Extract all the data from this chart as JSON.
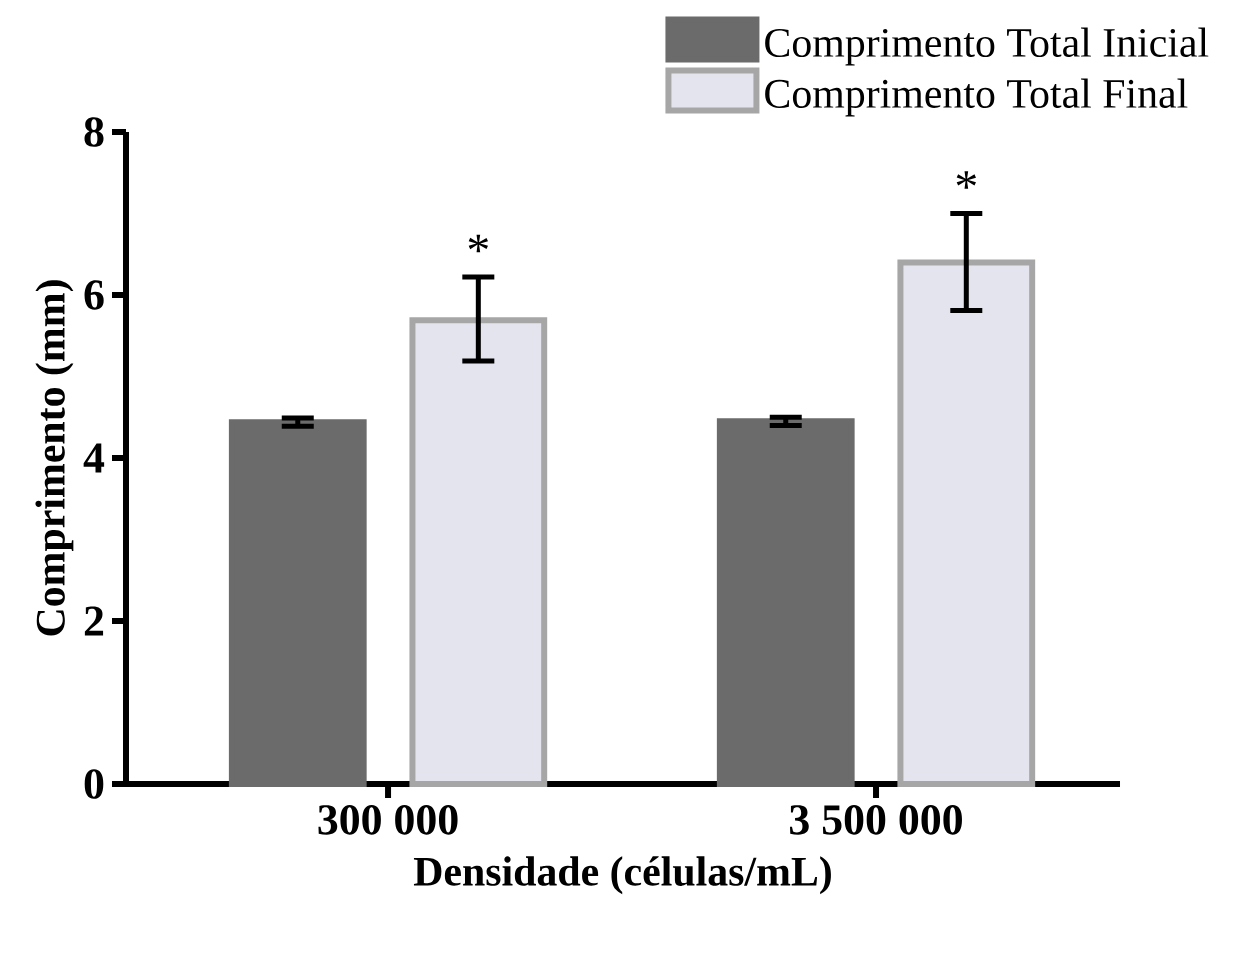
{
  "chart_data": {
    "type": "bar",
    "xlabel": "Densidade (células/mL)",
    "ylabel": "Comprimento (mm)",
    "categories": [
      "300 000",
      "3 500 000"
    ],
    "series": [
      {
        "name": "Comprimento Total Inicial",
        "color": "#6b6b6b",
        "values": [
          4.44,
          4.45
        ],
        "errors": [
          0.05,
          0.05
        ]
      },
      {
        "name": "Comprimento Total Final",
        "color": "#e4e4ee",
        "values": [
          5.69,
          6.4
        ],
        "errors": [
          [
            5.19,
            6.22
          ],
          [
            5.81,
            7.0
          ]
        ]
      }
    ],
    "ylim": [
      0,
      8
    ],
    "yticks": [
      0,
      2,
      4,
      6,
      8
    ],
    "annotations": [
      "*",
      "*"
    ],
    "grid": false,
    "legend": "top right"
  }
}
